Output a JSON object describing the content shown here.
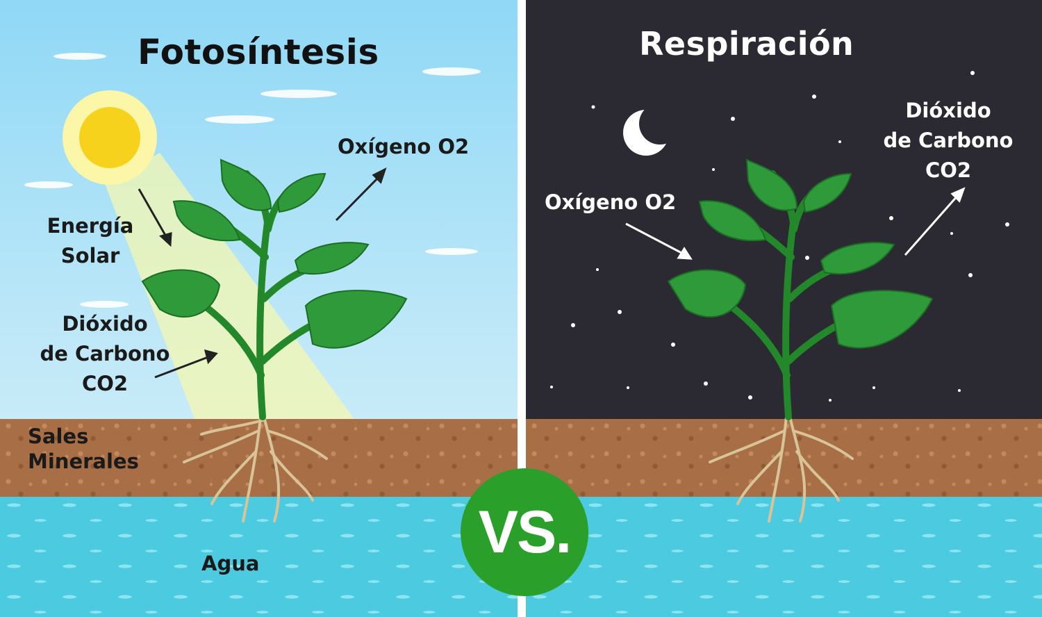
{
  "left_panel": {
    "title": "Fotosíntesis",
    "labels": {
      "oxygen": "Oxígeno O2",
      "solar_line1": "Energía",
      "solar_line2": "Solar",
      "co2_line1": "Dióxido",
      "co2_line2": "de Carbono",
      "co2_line3": "CO2",
      "salts_line1": "Sales",
      "salts_line2": "Minerales",
      "water": "Agua"
    }
  },
  "right_panel": {
    "title": "Respiración",
    "labels": {
      "oxygen": "Oxígeno O2",
      "co2_line1": "Dióxido",
      "co2_line2": "de Carbono",
      "co2_line3": "CO2"
    }
  },
  "badge": {
    "text": "VS."
  },
  "colors": {
    "sky": "#8fd8f6",
    "night": "#2b2a33",
    "soil": "#a86e45",
    "water": "#4ccbe0",
    "leaf": "#2f9a3a",
    "stem": "#22882a",
    "sun": "#f7d21c",
    "badge": "#2a9f2a"
  }
}
